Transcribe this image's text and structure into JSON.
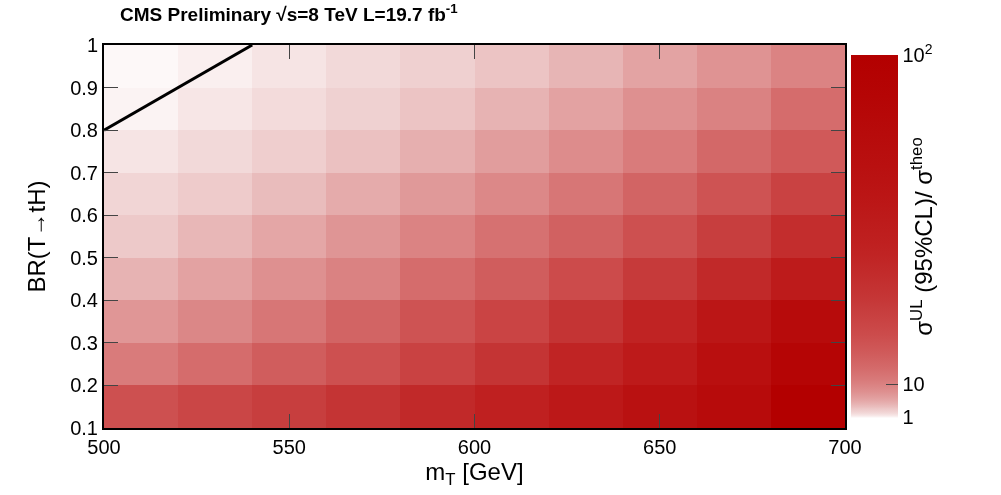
{
  "chart_data": {
    "type": "heatmap",
    "title": "CMS Preliminary √s=8 TeV L=19.7 fb$^{-1}$",
    "xlabel": "m$_{T}$ [GeV]",
    "ylabel": "BR(T→tH)",
    "clabel": "σ$^{UL}$ (95%CL)/ σ$^{theo}$",
    "x": [
      510,
      530,
      550,
      570,
      590,
      610,
      630,
      650,
      670,
      690
    ],
    "y": [
      0.95,
      0.85,
      0.75,
      0.65,
      0.55,
      0.45,
      0.35,
      0.25,
      0.15
    ],
    "cells": [
      [
        0.95,
        1.2,
        1.6,
        2.1,
        2.7,
        3.5,
        4.5,
        5.9,
        7.6,
        9.8
      ],
      [
        1.1,
        1.5,
        2.0,
        2.6,
        3.5,
        4.6,
        6.0,
        7.9,
        10,
        14
      ],
      [
        1.6,
        2.1,
        2.8,
        3.7,
        4.9,
        6.5,
        8.5,
        11,
        15,
        19
      ],
      [
        2.3,
        3.0,
        4.0,
        5.2,
        6.9,
        9.1,
        12,
        16,
        21,
        28
      ],
      [
        3.2,
        4.3,
        5.6,
        7.4,
        9.8,
        13,
        17,
        22,
        30,
        39
      ],
      [
        4.6,
        6.0,
        7.9,
        10,
        14,
        18,
        24,
        32,
        42,
        55
      ],
      [
        7.2,
        9.3,
        12,
        16,
        21,
        27,
        35,
        46,
        60,
        78
      ],
      [
        11,
        14,
        18,
        22,
        28,
        35,
        45,
        56,
        71,
        89
      ],
      [
        22,
        26,
        30,
        35,
        42,
        49,
        58,
        68,
        79,
        100
      ]
    ],
    "clim": [
      0.8,
      100
    ],
    "cticks": [
      1,
      10,
      {
        "value": 100,
        "label": "10$^{2}$"
      }
    ],
    "xlim": [
      500,
      700
    ],
    "xticks": [
      500,
      550,
      600,
      650,
      700
    ],
    "ylim": [
      0.1,
      1
    ],
    "yticks": [
      0.1,
      0.2,
      0.3,
      0.4,
      0.5,
      0.6,
      0.7,
      0.8,
      0.9,
      1
    ],
    "series": [
      {
        "type": "line",
        "x": [
          500,
          540
        ],
        "values": [
          0.8,
          1
        ],
        "color": "#000000"
      }
    ]
  }
}
